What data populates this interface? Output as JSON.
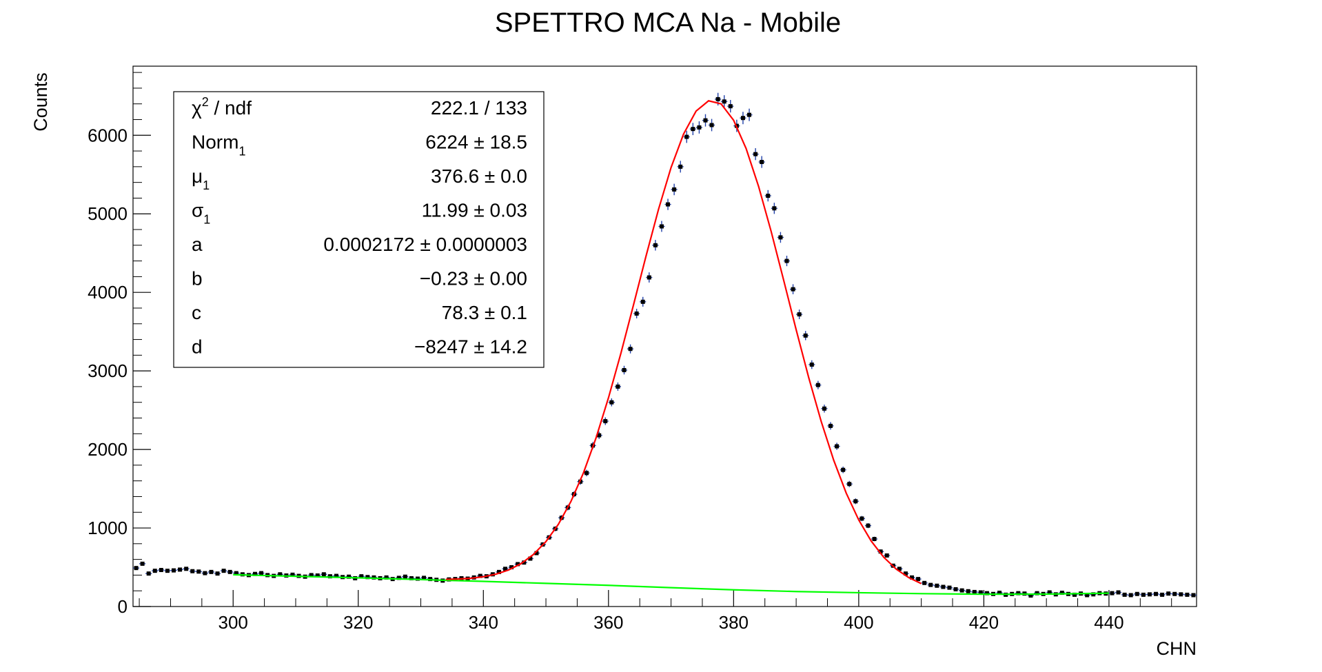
{
  "chart_data": {
    "type": "scatter",
    "title": "SPETTRO MCA Na - Mobile",
    "x_label": "CHN",
    "y_label": "Counts",
    "xlim": [
      284,
      454
    ],
    "ylim": [
      0,
      6880
    ],
    "xticks": [
      300,
      320,
      340,
      360,
      380,
      400,
      420,
      440
    ],
    "yticks": [
      0,
      1000,
      2000,
      3000,
      4000,
      5000,
      6000
    ],
    "points": {
      "color": "#000000",
      "error_color": "#1f3fa8",
      "x": [
        284.5,
        285.5,
        286.5,
        287.5,
        288.5,
        289.5,
        290.5,
        291.5,
        292.5,
        293.5,
        294.5,
        295.5,
        296.5,
        297.5,
        298.5,
        299.5,
        300.5,
        301.5,
        302.5,
        303.5,
        304.5,
        305.5,
        306.5,
        307.5,
        308.5,
        309.5,
        310.5,
        311.5,
        312.5,
        313.5,
        314.5,
        315.5,
        316.5,
        317.5,
        318.5,
        319.5,
        320.5,
        321.5,
        322.5,
        323.5,
        324.5,
        325.5,
        326.5,
        327.5,
        328.5,
        329.5,
        330.5,
        331.5,
        332.5,
        333.5,
        334.5,
        335.5,
        336.5,
        337.5,
        338.5,
        339.5,
        340.5,
        341.5,
        342.5,
        343.5,
        344.5,
        345.5,
        346.5,
        347.5,
        348.5,
        349.5,
        350.5,
        351.5,
        352.5,
        353.5,
        354.5,
        355.5,
        356.5,
        357.5,
        358.5,
        359.5,
        360.5,
        361.5,
        362.5,
        363.5,
        364.5,
        365.5,
        366.5,
        367.5,
        368.5,
        369.5,
        370.5,
        371.5,
        372.5,
        373.5,
        374.5,
        375.5,
        376.5,
        377.5,
        378.5,
        379.5,
        380.5,
        381.5,
        382.5,
        383.5,
        384.5,
        385.5,
        386.5,
        387.5,
        388.5,
        389.5,
        390.5,
        391.5,
        392.5,
        393.5,
        394.5,
        395.5,
        396.5,
        397.5,
        398.5,
        399.5,
        400.5,
        401.5,
        402.5,
        403.5,
        404.5,
        405.5,
        406.5,
        407.5,
        408.5,
        409.5,
        410.5,
        411.5,
        412.5,
        413.5,
        414.5,
        415.5,
        416.5,
        417.5,
        418.5,
        419.5,
        420.5,
        421.5,
        422.5,
        423.5,
        424.5,
        425.5,
        426.5,
        427.5,
        428.5,
        429.5,
        430.5,
        431.5,
        432.5,
        433.5,
        434.5,
        435.5,
        436.5,
        437.5,
        438.5,
        439.5,
        440.5,
        441.5,
        442.5,
        443.5,
        444.5,
        445.5,
        446.5,
        447.5,
        448.5,
        449.5,
        450.5,
        451.5,
        452.5,
        453.5
      ],
      "values": [
        490,
        545,
        420,
        455,
        465,
        455,
        460,
        470,
        480,
        450,
        445,
        425,
        440,
        420,
        455,
        440,
        425,
        410,
        400,
        415,
        425,
        400,
        390,
        410,
        395,
        405,
        390,
        380,
        400,
        395,
        410,
        385,
        390,
        375,
        380,
        360,
        385,
        375,
        370,
        360,
        370,
        350,
        365,
        380,
        360,
        355,
        365,
        350,
        340,
        330,
        345,
        350,
        360,
        355,
        370,
        390,
        385,
        410,
        440,
        480,
        500,
        540,
        560,
        610,
        680,
        790,
        880,
        990,
        1130,
        1260,
        1430,
        1590,
        1700,
        2050,
        2180,
        2360,
        2600,
        2800,
        3010,
        3280,
        3730,
        3880,
        4190,
        4600,
        4840,
        5120,
        5310,
        5600,
        5980,
        6080,
        6100,
        6190,
        6130,
        6460,
        6430,
        6370,
        6120,
        6220,
        6260,
        5760,
        5660,
        5230,
        5070,
        4700,
        4400,
        4040,
        3720,
        3450,
        3080,
        2820,
        2520,
        2300,
        2040,
        1740,
        1560,
        1340,
        1120,
        1030,
        860,
        700,
        650,
        520,
        480,
        420,
        370,
        350,
        300,
        275,
        265,
        250,
        240,
        220,
        205,
        195,
        185,
        180,
        170,
        160,
        175,
        150,
        160,
        170,
        165,
        140,
        170,
        160,
        180,
        155,
        175,
        160,
        150,
        165,
        145,
        155,
        170,
        165,
        170,
        180,
        150,
        145,
        160,
        150,
        155,
        160,
        150,
        165,
        160,
        155,
        150,
        145
      ]
    },
    "fit_curve": {
      "color": "#ff0000",
      "x": [
        334,
        336,
        338,
        340,
        342,
        344,
        346,
        348,
        350,
        352,
        354,
        356,
        358,
        360,
        362,
        364,
        366,
        368,
        370,
        372,
        374,
        376,
        378,
        380,
        382,
        384,
        386,
        388,
        390,
        392,
        394,
        396,
        398,
        400,
        402,
        404,
        406,
        408,
        410
      ],
      "values": [
        346,
        350,
        360,
        379,
        412,
        464,
        545,
        662,
        827,
        1048,
        1338,
        1702,
        2144,
        2658,
        3229,
        3841,
        4462,
        5058,
        5589,
        6016,
        6308,
        6439,
        6400,
        6192,
        5831,
        5347,
        4776,
        4155,
        3524,
        2916,
        2357,
        1863,
        1444,
        1102,
        833,
        627,
        476,
        368,
        292
      ]
    },
    "background_curve": {
      "color": "#00ff00",
      "x": [
        300,
        310,
        320,
        330,
        340,
        350,
        360,
        370,
        380,
        390,
        400,
        410,
        420,
        430,
        440
      ],
      "values": [
        405,
        385,
        365,
        343,
        320,
        295,
        270,
        240,
        213,
        191,
        176,
        164,
        157,
        158,
        170
      ]
    },
    "stats": [
      {
        "name": "χ",
        "sup": "2",
        "suffix": " / ndf",
        "value": "222.1 / 133"
      },
      {
        "name": "Norm",
        "sub": "1",
        "value": "6224 ± 18.5"
      },
      {
        "name": "μ",
        "sub": "1",
        "value": "376.6 ± 0.0"
      },
      {
        "name": "σ",
        "sub": "1",
        "value": "11.99 ± 0.03"
      },
      {
        "name": "a",
        "value": "0.0002172 ± 0.0000003"
      },
      {
        "name": "b",
        "value": "−0.23 ± 0.00"
      },
      {
        "name": "c",
        "value": "78.3 ± 0.1"
      },
      {
        "name": "d",
        "value": "−8247 ± 14.2"
      }
    ]
  }
}
